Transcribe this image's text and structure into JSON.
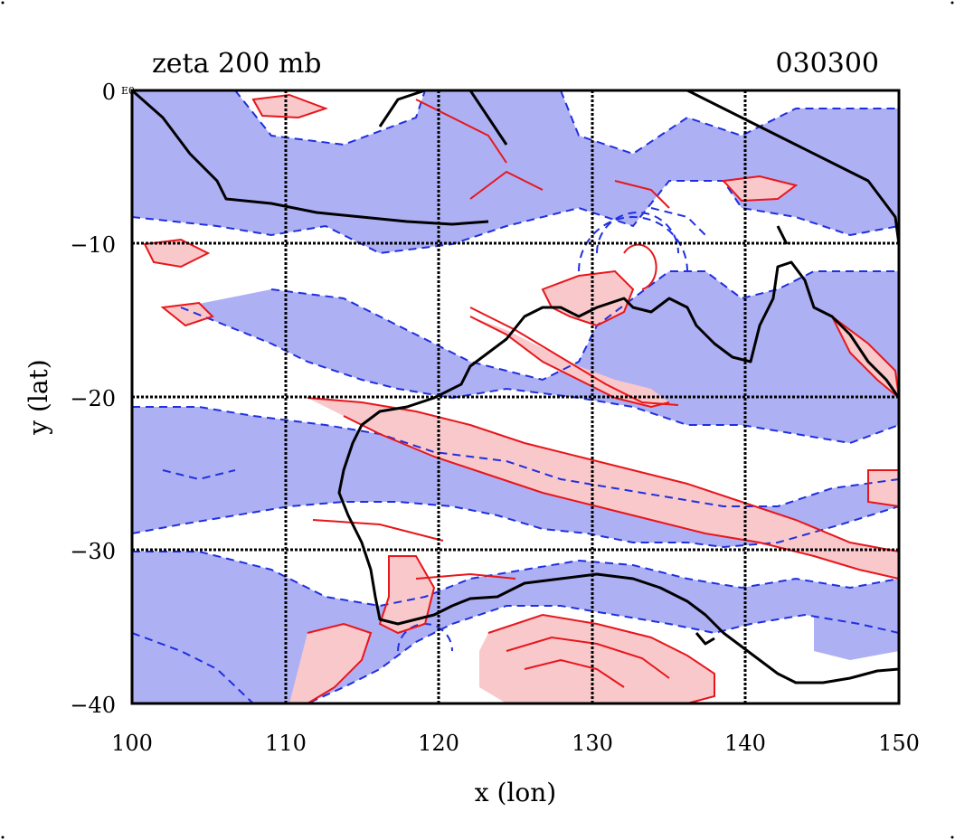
{
  "title": "zeta 200 mb",
  "timestamp": "030300",
  "corner_mark": "E0",
  "xlabel": "x (lon)",
  "ylabel": "y (lat)",
  "x_ticks": [
    "100",
    "110",
    "120",
    "130",
    "140",
    "150"
  ],
  "y_ticks": [
    "0",
    "−10",
    "−20",
    "−30",
    "−40"
  ],
  "x_range": [
    100,
    150
  ],
  "y_range": [
    -40,
    0
  ],
  "grid": true,
  "colors": {
    "positive_line": "#e8161b",
    "positive_fill": "#f9c8cb",
    "negative_line": "#1f2fe0",
    "negative_fill": "#aeb0f4",
    "coast": "#000000",
    "grid": "#000000"
  }
}
